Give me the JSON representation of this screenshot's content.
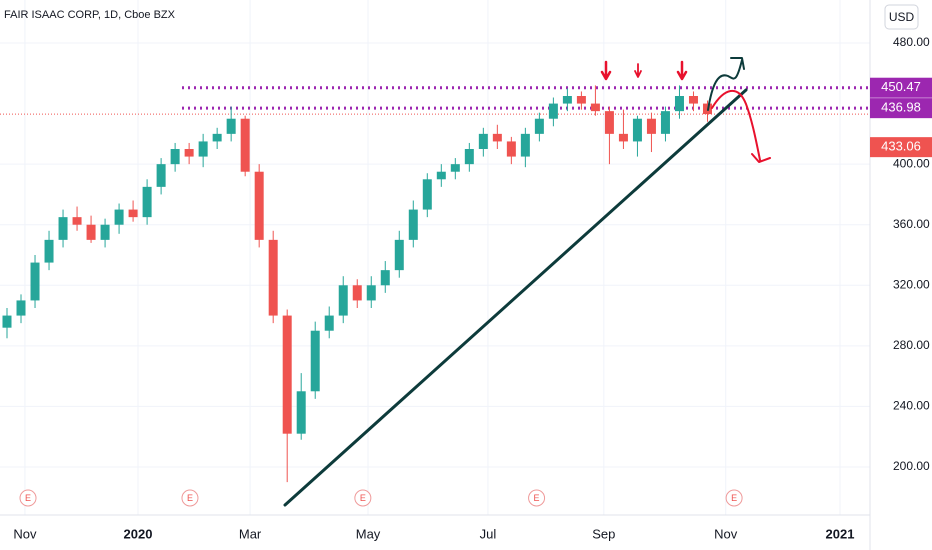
{
  "chart_data": {
    "type": "candlestick",
    "title": "FAIR ISAAC CORP, 1D, Cboe BZX",
    "currency": "USD",
    "categories": [
      null,
      null,
      null,
      null,
      null,
      null,
      null,
      null,
      null,
      null,
      null,
      null,
      null,
      null,
      null,
      null,
      null,
      null,
      null,
      null,
      null,
      null,
      null,
      null,
      null,
      null,
      null,
      null,
      null,
      null,
      null,
      null,
      null,
      null,
      null,
      null,
      null,
      null,
      null,
      null,
      null,
      null,
      null,
      null,
      null,
      null,
      null,
      null,
      null,
      null,
      null
    ],
    "open": [
      292,
      300,
      310,
      335,
      350,
      365,
      360,
      350,
      360,
      370,
      365,
      385,
      400,
      410,
      405,
      415,
      420,
      430,
      395,
      350,
      300,
      222,
      250,
      290,
      300,
      320,
      310,
      320,
      330,
      350,
      370,
      390,
      395,
      400,
      410,
      420,
      415,
      405,
      420,
      430,
      440,
      445,
      440,
      435,
      420,
      415,
      430,
      420,
      435,
      445,
      440
    ],
    "high": [
      305,
      314,
      340,
      356,
      370,
      372,
      366,
      364,
      374,
      376,
      390,
      404,
      414,
      414,
      420,
      424,
      438,
      432,
      400,
      356,
      304,
      262,
      296,
      306,
      326,
      324,
      326,
      336,
      356,
      376,
      394,
      400,
      404,
      414,
      424,
      426,
      418,
      424,
      434,
      444,
      450,
      448,
      452,
      438,
      436,
      432,
      434,
      438,
      452,
      448,
      442
    ],
    "low": [
      285,
      295,
      305,
      330,
      345,
      356,
      348,
      345,
      354,
      362,
      360,
      380,
      395,
      400,
      398,
      410,
      415,
      392,
      345,
      295,
      190,
      218,
      245,
      285,
      295,
      305,
      305,
      315,
      325,
      345,
      365,
      385,
      390,
      395,
      405,
      410,
      400,
      398,
      415,
      425,
      435,
      436,
      432,
      400,
      410,
      405,
      408,
      415,
      430,
      435,
      428
    ],
    "close": [
      300,
      310,
      335,
      350,
      365,
      360,
      350,
      360,
      370,
      365,
      385,
      400,
      410,
      405,
      415,
      420,
      430,
      395,
      350,
      300,
      222,
      250,
      290,
      300,
      320,
      310,
      320,
      330,
      350,
      370,
      390,
      395,
      400,
      410,
      420,
      415,
      405,
      420,
      430,
      440,
      445,
      440,
      435,
      420,
      415,
      430,
      420,
      435,
      445,
      440,
      433.06
    ],
    "up_color": "#26a69a",
    "down_color": "#ef5350",
    "xlim": [
      -0.5,
      61.6
    ],
    "xticks": [
      {
        "value": 1.28,
        "label": "Nov"
      },
      {
        "value": 9.35,
        "label": "2020"
      },
      {
        "value": 17.35,
        "label": "Mar"
      },
      {
        "value": 25.77,
        "label": "May"
      },
      {
        "value": 34.33,
        "label": "Jul"
      },
      {
        "value": 42.6,
        "label": "Sep"
      },
      {
        "value": 51.3,
        "label": "Nov"
      },
      {
        "value": 59.46,
        "label": "2021"
      }
    ],
    "ylim": [
      168.3,
      508.4
    ],
    "yticks": [
      {
        "value": 200,
        "label": "200.00"
      },
      {
        "value": 240,
        "label": "240.00"
      },
      {
        "value": 280,
        "label": "280.00"
      },
      {
        "value": 320,
        "label": "320.00"
      },
      {
        "value": 360,
        "label": "360.00"
      },
      {
        "value": 400,
        "label": "400.00"
      },
      {
        "value": 480,
        "label": "480.00"
      }
    ],
    "levels": [
      {
        "value": 450.47,
        "color": "#9c27b0"
      },
      {
        "value": 436.98,
        "color": "#9c27b0"
      },
      {
        "value": 433.06,
        "color": "#ef5350"
      }
    ],
    "events": [
      {
        "x": 1.5,
        "label": "E"
      },
      {
        "x": 13.06,
        "label": "E"
      },
      {
        "x": 25.4,
        "label": "E"
      },
      {
        "x": 37.8,
        "label": "E"
      },
      {
        "x": 51.9,
        "label": "E"
      }
    ],
    "grid": true
  }
}
